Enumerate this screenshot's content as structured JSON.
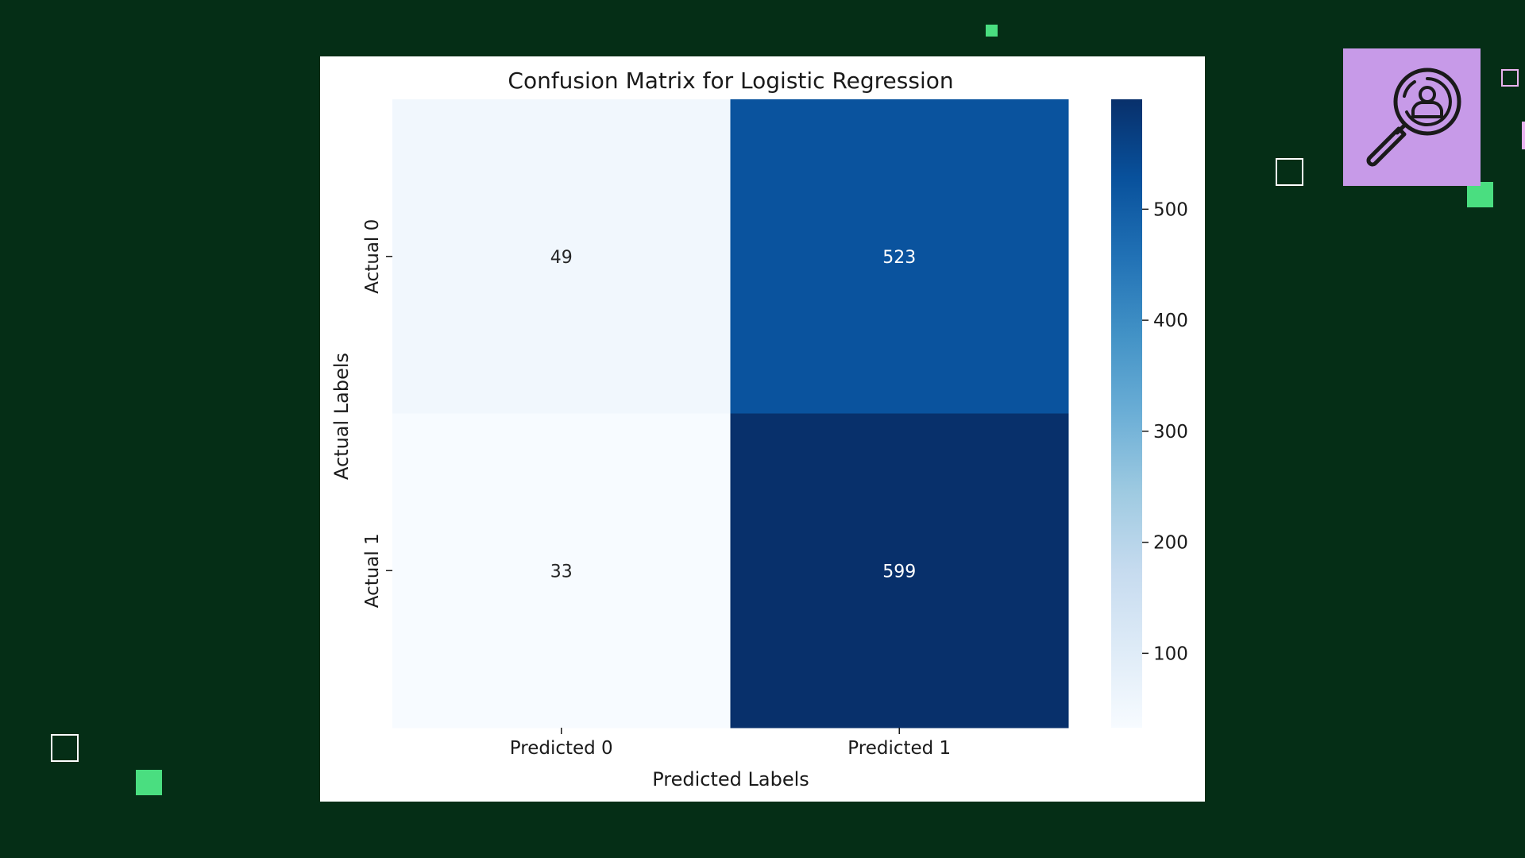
{
  "colors": {
    "background": "#052e16",
    "accent_green": "#4ade80",
    "badge_purple": "#c79ae8",
    "cmap_low": "#f7fbff",
    "cmap_high": "#08306b"
  },
  "badge": {
    "icon": "magnifier-person-icon"
  },
  "chart_data": {
    "type": "heatmap",
    "title": "Confusion Matrix for Logistic Regression",
    "xlabel": "Predicted Labels",
    "ylabel": "Actual Labels",
    "x_categories": [
      "Predicted 0",
      "Predicted 1"
    ],
    "y_categories": [
      "Actual 0",
      "Actual 1"
    ],
    "values": [
      [
        49,
        523
      ],
      [
        33,
        599
      ]
    ],
    "colorbar": {
      "min": 33,
      "max": 599,
      "ticks": [
        100,
        200,
        300,
        400,
        500
      ],
      "colormap": "Blues"
    },
    "grid": false
  }
}
